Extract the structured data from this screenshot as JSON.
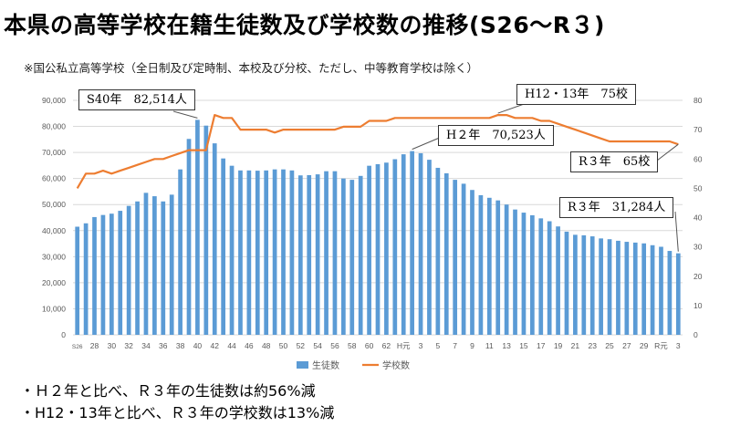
{
  "title": "本県の高等学校在籍生徒数及び学校数の推移(S26〜R３)",
  "note": "※国公私立高等学校（全日制及び定時制、本校及び分校、ただし、中等教育学校は除く）",
  "callouts": {
    "s40": "S40年　82,514人",
    "h12": "H12・13年　75校",
    "h2": "H２年　70,523人",
    "r3_schools": "R３年　65校",
    "r3_students": "R３年　31,284人"
  },
  "bullets": [
    "・Ｈ２年と比べ、Ｒ３年の生徒数は約56%減",
    "・H12・13年と比べ、Ｒ３年の学校数は13%減"
  ],
  "colors": {
    "bar": "#5b9bd5",
    "line": "#ed7d31",
    "grid": "#d9d9d9",
    "axis_text": "#595959"
  },
  "chart_data": {
    "type": "bar",
    "categories": [
      "S26",
      "27",
      "28",
      "29",
      "30",
      "31",
      "32",
      "33",
      "34",
      "35",
      "36",
      "37",
      "38",
      "39",
      "40",
      "41",
      "42",
      "43",
      "44",
      "45",
      "46",
      "47",
      "48",
      "49",
      "50",
      "51",
      "52",
      "53",
      "54",
      "55",
      "56",
      "57",
      "58",
      "59",
      "60",
      "61",
      "62",
      "63",
      "H元",
      "2",
      "3",
      "4",
      "5",
      "6",
      "7",
      "8",
      "9",
      "10",
      "11",
      "12",
      "13",
      "14",
      "15",
      "16",
      "17",
      "18",
      "19",
      "20",
      "21",
      "22",
      "23",
      "24",
      "25",
      "26",
      "27",
      "28",
      "29",
      "30",
      "R元",
      "2",
      "3"
    ],
    "x_tick_labels": [
      "S26",
      "28",
      "30",
      "32",
      "34",
      "36",
      "38",
      "40",
      "42",
      "44",
      "46",
      "48",
      "50",
      "52",
      "54",
      "56",
      "58",
      "60",
      "62",
      "H元",
      "3",
      "5",
      "7",
      "9",
      "11",
      "13",
      "15",
      "17",
      "19",
      "21",
      "23",
      "25",
      "27",
      "29",
      "R元",
      "3"
    ],
    "series": [
      {
        "name": "生徒数",
        "type": "bar",
        "axis": "left",
        "values": [
          41500,
          42800,
          45200,
          46000,
          46500,
          47600,
          49500,
          51200,
          54500,
          53200,
          51200,
          53800,
          63500,
          75200,
          82514,
          80300,
          73500,
          67700,
          64900,
          63100,
          63100,
          63000,
          63100,
          63500,
          63500,
          63100,
          61200,
          61300,
          61600,
          62800,
          62800,
          60000,
          59500,
          61000,
          64900,
          65500,
          66100,
          67400,
          69300,
          70523,
          69700,
          67200,
          64100,
          62000,
          59500,
          58000,
          55600,
          53600,
          52600,
          51600,
          50000,
          48100,
          46900,
          45900,
          44700,
          43600,
          41600,
          39600,
          38400,
          38200,
          37800,
          37000,
          36700,
          36100,
          35700,
          35400,
          35100,
          34400,
          33800,
          32200,
          31284
        ]
      },
      {
        "name": "学校数",
        "type": "line",
        "axis": "right",
        "values": [
          50,
          55,
          55,
          56,
          55,
          56,
          57,
          58,
          59,
          60,
          60,
          61,
          62,
          63,
          63,
          63,
          75,
          74,
          74,
          70,
          70,
          70,
          70,
          69,
          70,
          70,
          70,
          70,
          70,
          70,
          70,
          71,
          71,
          71,
          73,
          73,
          73,
          74,
          74,
          74,
          74,
          74,
          74,
          74,
          74,
          74,
          74,
          74,
          74,
          75,
          75,
          74,
          74,
          74,
          73,
          73,
          72,
          71,
          70,
          69,
          68,
          67,
          66,
          66,
          66,
          66,
          66,
          66,
          66,
          66,
          65
        ]
      }
    ],
    "ylim_left": [
      0,
      90000
    ],
    "yticks_left": [
      "0",
      "10,000",
      "20,000",
      "30,000",
      "40,000",
      "50,000",
      "60,000",
      "70,000",
      "80,000",
      "90,000"
    ],
    "ylim_right": [
      0,
      80
    ],
    "yticks_right": [
      "0",
      "10",
      "20",
      "30",
      "40",
      "50",
      "60",
      "70",
      "80"
    ],
    "legend": {
      "position": "bottom",
      "items": [
        "生徒数",
        "学校数"
      ]
    },
    "grid": true
  }
}
